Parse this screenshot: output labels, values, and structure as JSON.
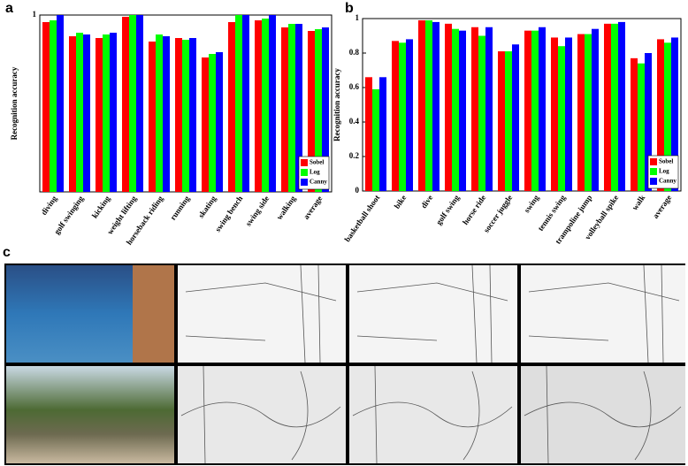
{
  "chart_data": [
    {
      "type": "bar",
      "label": "a",
      "y_label": "Recognition accuracy",
      "categories": [
        "diving",
        "golf swinging",
        "kicking",
        "weight lifting",
        "horseback riding",
        "running",
        "skating",
        "swing bench",
        "swing side",
        "walking",
        "average"
      ],
      "series": [
        {
          "name": "Sobel",
          "color": "#ff0000",
          "values": [
            0.96,
            0.88,
            0.87,
            0.99,
            0.85,
            0.87,
            0.76,
            0.96,
            0.97,
            0.93,
            0.91
          ]
        },
        {
          "name": "Log",
          "color": "#00ff00",
          "values": [
            0.97,
            0.9,
            0.89,
            1.0,
            0.89,
            0.86,
            0.78,
            1.0,
            0.98,
            0.95,
            0.92
          ]
        },
        {
          "name": "Canny",
          "color": "#0000ff",
          "values": [
            1.0,
            0.89,
            0.9,
            1.0,
            0.88,
            0.87,
            0.79,
            1.0,
            1.0,
            0.95,
            0.93
          ]
        }
      ],
      "ylim": [
        0,
        1
      ],
      "yticks": [
        1
      ],
      "legend": "lower right"
    },
    {
      "type": "bar",
      "label": "b",
      "y_label": "Recognition accuracy",
      "categories": [
        "basketball shoot",
        "bike",
        "dive",
        "golf swing",
        "horse ride",
        "soccer juggle",
        "swing",
        "tennis swing",
        "trampoline jump",
        "volleyball spike",
        "walk",
        "average"
      ],
      "series": [
        {
          "name": "Sobel",
          "color": "#ff0000",
          "values": [
            0.66,
            0.87,
            0.99,
            0.97,
            0.95,
            0.81,
            0.93,
            0.89,
            0.91,
            0.97,
            0.77,
            0.88
          ]
        },
        {
          "name": "Log",
          "color": "#00ff00",
          "values": [
            0.59,
            0.86,
            0.99,
            0.94,
            0.9,
            0.81,
            0.93,
            0.84,
            0.91,
            0.97,
            0.74,
            0.86
          ]
        },
        {
          "name": "Canny",
          "color": "#0000ff",
          "values": [
            0.66,
            0.88,
            0.98,
            0.93,
            0.95,
            0.85,
            0.95,
            0.89,
            0.94,
            0.98,
            0.8,
            0.89
          ]
        }
      ],
      "ylim": [
        0,
        1
      ],
      "yticks": [
        0,
        0.2,
        0.4,
        0.6,
        0.8,
        1
      ],
      "legend": "lower right"
    }
  ],
  "images": {
    "label": "c"
  }
}
